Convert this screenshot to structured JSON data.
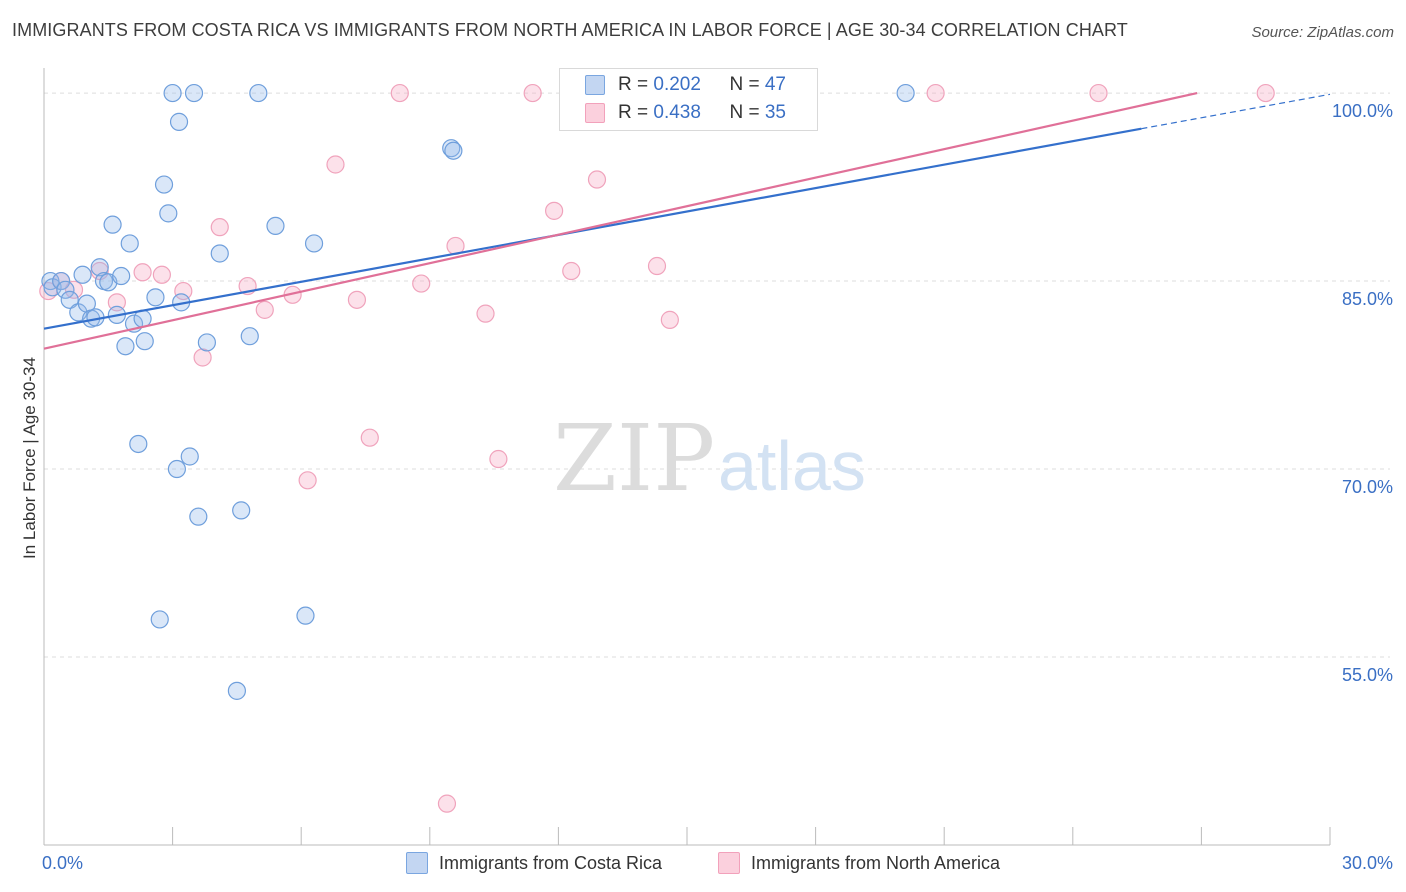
{
  "title": "IMMIGRANTS FROM COSTA RICA VS IMMIGRANTS FROM NORTH AMERICA IN LABOR FORCE | AGE 30-34 CORRELATION CHART",
  "source": "Source: ZipAtlas.com",
  "watermark": {
    "zip": "ZIP",
    "atlas": "atlas"
  },
  "legend_top": [
    {
      "r_label": "R = ",
      "r_value": "0.202",
      "n_label": "N = ",
      "n_value": "47"
    },
    {
      "r_label": "R = ",
      "r_value": "0.438",
      "n_label": "N = ",
      "n_value": "35"
    }
  ],
  "chart_data": {
    "type": "scatter",
    "title": "IMMIGRANTS FROM COSTA RICA VS IMMIGRANTS FROM NORTH AMERICA IN LABOR FORCE | AGE 30-34 CORRELATION CHART",
    "xlabel": "",
    "ylabel": "In Labor Force | Age 30-34",
    "xlim": [
      0,
      30
    ],
    "ylim": [
      40,
      102
    ],
    "x_tick_labels": [
      "0.0%",
      "30.0%"
    ],
    "y_ticks": [
      55,
      70,
      85,
      100
    ],
    "y_tick_labels": [
      "55.0%",
      "70.0%",
      "85.0%",
      "100.0%"
    ],
    "grid": true,
    "legend_position": "top-center",
    "colors": {
      "costa_rica": "#7aa6e0",
      "north_america": "#f2a1bb",
      "costa_rica_line": "#3470cc",
      "north_america_line": "#e07098",
      "tick_label": "#3a6fc4"
    },
    "series": [
      {
        "name": "Immigrants from Costa Rica",
        "r": 0.202,
        "n": 47,
        "trend": {
          "x0": 0,
          "y0": 81.2,
          "x1": 30,
          "y1": 99.9,
          "solid_until_x": 25.6
        },
        "points": [
          [
            0.15,
            85.0
          ],
          [
            0.2,
            84.5
          ],
          [
            0.4,
            85.0
          ],
          [
            0.5,
            84.3
          ],
          [
            0.6,
            83.5
          ],
          [
            0.8,
            82.5
          ],
          [
            0.9,
            85.5
          ],
          [
            1.0,
            83.2
          ],
          [
            1.1,
            82.0
          ],
          [
            1.2,
            82.1
          ],
          [
            1.3,
            86.1
          ],
          [
            1.4,
            85.0
          ],
          [
            1.5,
            84.9
          ],
          [
            1.6,
            89.5
          ],
          [
            1.7,
            82.3
          ],
          [
            1.8,
            85.4
          ],
          [
            1.9,
            79.8
          ],
          [
            2.0,
            88.0
          ],
          [
            2.1,
            81.6
          ],
          [
            2.2,
            72.0
          ],
          [
            2.3,
            82.0
          ],
          [
            2.35,
            80.2
          ],
          [
            2.6,
            83.7
          ],
          [
            2.7,
            58.0
          ],
          [
            2.8,
            92.7
          ],
          [
            2.9,
            90.4
          ],
          [
            3.0,
            100.0
          ],
          [
            3.1,
            70.0
          ],
          [
            3.15,
            97.7
          ],
          [
            3.2,
            83.3
          ],
          [
            3.4,
            71.0
          ],
          [
            3.5,
            100.0
          ],
          [
            3.6,
            66.2
          ],
          [
            3.8,
            80.1
          ],
          [
            4.1,
            87.2
          ],
          [
            4.5,
            52.3
          ],
          [
            4.6,
            66.7
          ],
          [
            4.8,
            80.6
          ],
          [
            5.0,
            100.0
          ],
          [
            5.4,
            89.4
          ],
          [
            6.1,
            58.3
          ],
          [
            6.3,
            88.0
          ],
          [
            9.5,
            95.6
          ],
          [
            9.55,
            95.4
          ],
          [
            20.1,
            100.0
          ]
        ]
      },
      {
        "name": "Immigrants from North America",
        "r": 0.438,
        "n": 35,
        "trend": {
          "x0": 0,
          "y0": 79.6,
          "x1": 26.9,
          "y1": 100.0
        },
        "points": [
          [
            0.1,
            84.2
          ],
          [
            0.4,
            85.0
          ],
          [
            0.7,
            84.3
          ],
          [
            1.3,
            85.8
          ],
          [
            1.7,
            83.3
          ],
          [
            2.3,
            85.7
          ],
          [
            2.75,
            85.5
          ],
          [
            3.25,
            84.2
          ],
          [
            3.7,
            78.9
          ],
          [
            4.1,
            89.3
          ],
          [
            4.75,
            84.6
          ],
          [
            5.15,
            82.7
          ],
          [
            5.8,
            83.9
          ],
          [
            6.15,
            69.1
          ],
          [
            6.8,
            94.3
          ],
          [
            7.3,
            83.5
          ],
          [
            7.6,
            72.5
          ],
          [
            8.3,
            100.0
          ],
          [
            8.8,
            84.8
          ],
          [
            9.4,
            43.3
          ],
          [
            9.6,
            87.8
          ],
          [
            10.3,
            82.4
          ],
          [
            10.6,
            70.8
          ],
          [
            11.4,
            100.0
          ],
          [
            11.9,
            90.6
          ],
          [
            12.3,
            85.8
          ],
          [
            12.9,
            93.1
          ],
          [
            14.3,
            86.2
          ],
          [
            14.6,
            81.9
          ],
          [
            15.6,
            100.0
          ],
          [
            20.8,
            100.0
          ],
          [
            24.6,
            100.0
          ],
          [
            28.5,
            100.0
          ]
        ]
      }
    ]
  },
  "legend_bottom": [
    "Immigrants from Costa Rica",
    "Immigrants from North America"
  ]
}
